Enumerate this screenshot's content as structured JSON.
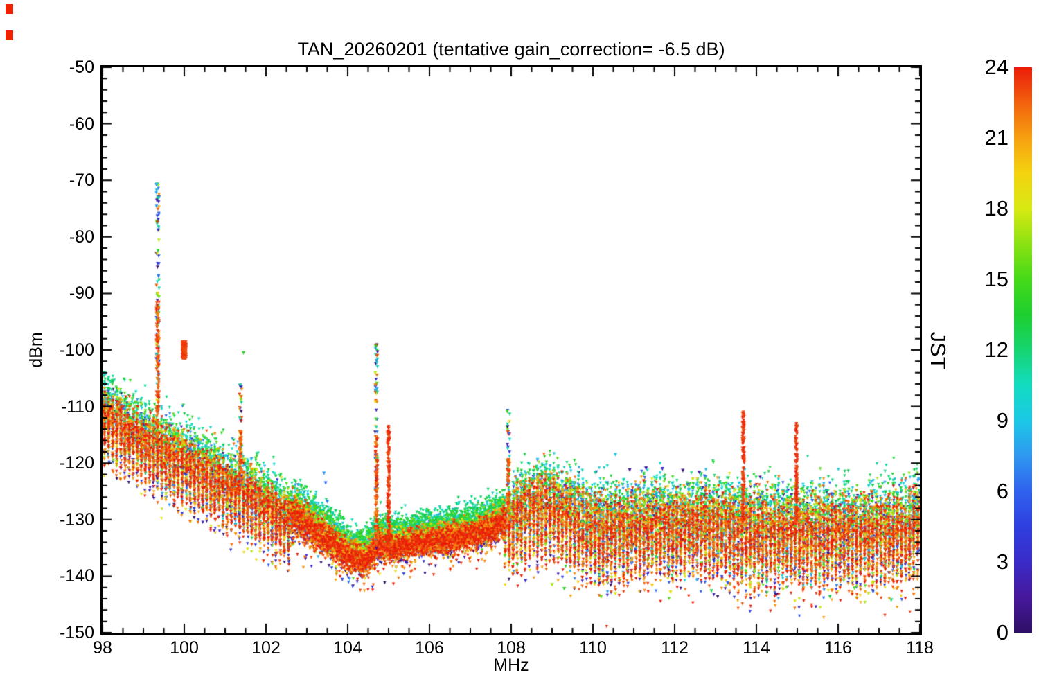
{
  "window": {
    "background": "#ffffff"
  },
  "artifacts": {
    "corner_marks_color": "#ee2200"
  },
  "chart_data": {
    "type": "scatter",
    "title": "TAN_20260201 (tentative gain_correction= -6.5 dB)",
    "xlabel": "MHz",
    "ylabel": "dBm",
    "colorbar_label": "JST",
    "marker": "triangle-down",
    "grid": false,
    "xlim": [
      98,
      118
    ],
    "ylim": [
      -150,
      -50
    ],
    "x_major_ticks": [
      98,
      100,
      102,
      104,
      106,
      108,
      110,
      112,
      114,
      116,
      118
    ],
    "x_minor_step": 0.5,
    "y_major_ticks": [
      -150,
      -140,
      -130,
      -120,
      -110,
      -100,
      -90,
      -80,
      -70,
      -60,
      -50
    ],
    "y_minor_step": 2,
    "colorbar": {
      "min": 0,
      "max": 24,
      "ticks": [
        0,
        3,
        6,
        9,
        12,
        15,
        18,
        21,
        24
      ],
      "stops": [
        [
          0,
          "#2e0f66"
        ],
        [
          1.5,
          "#47189c"
        ],
        [
          3,
          "#3a2bc8"
        ],
        [
          4.5,
          "#2f3fe0"
        ],
        [
          6,
          "#2f62ee"
        ],
        [
          7.5,
          "#2f97f0"
        ],
        [
          9,
          "#1cc8e6"
        ],
        [
          10.5,
          "#12dcc0"
        ],
        [
          12,
          "#16d470"
        ],
        [
          13.5,
          "#1ecf2f"
        ],
        [
          15,
          "#45da18"
        ],
        [
          16.5,
          "#8ce212"
        ],
        [
          18,
          "#d8e912"
        ],
        [
          19.5,
          "#f4d310"
        ],
        [
          21,
          "#f7a010"
        ],
        [
          22.5,
          "#f2600d"
        ],
        [
          24,
          "#ea1c0a"
        ]
      ]
    },
    "noise_band": {
      "description": "spectrum noise floor: [MHz, center dBm, half-spread dB]",
      "points": [
        [
          98,
          -110.5,
          4.5
        ],
        [
          98.5,
          -113,
          4.5
        ],
        [
          99,
          -115.5,
          4.5
        ],
        [
          99.5,
          -117.5,
          4.5
        ],
        [
          100,
          -119,
          4.5
        ],
        [
          100.5,
          -121,
          4.5
        ],
        [
          101,
          -123,
          4.5
        ],
        [
          101.5,
          -124.5,
          4.5
        ],
        [
          102,
          -127,
          4
        ],
        [
          102.5,
          -129,
          4
        ],
        [
          103,
          -131,
          3.5
        ],
        [
          103.5,
          -133.5,
          3
        ],
        [
          104,
          -136.5,
          3
        ],
        [
          104.4,
          -137.5,
          2.8
        ],
        [
          104.8,
          -134.5,
          2.8
        ],
        [
          105.2,
          -135,
          2.6
        ],
        [
          106,
          -134,
          2.6
        ],
        [
          107,
          -133,
          2.6
        ],
        [
          107.6,
          -131.5,
          2.8
        ],
        [
          107.95,
          -130,
          3
        ],
        [
          108.1,
          -128,
          4.5
        ],
        [
          108.8,
          -126,
          5.5
        ],
        [
          109.3,
          -127.5,
          5.5
        ],
        [
          110,
          -130.5,
          6
        ],
        [
          110.7,
          -130.5,
          5.5
        ],
        [
          111.3,
          -129.5,
          5.5
        ],
        [
          112,
          -130,
          5.5
        ],
        [
          112.7,
          -129.5,
          5.5
        ],
        [
          113.4,
          -130.5,
          6
        ],
        [
          114,
          -131,
          6
        ],
        [
          115,
          -131,
          6
        ],
        [
          116,
          -131,
          6
        ],
        [
          117,
          -131,
          6
        ],
        [
          117.6,
          -130.5,
          5.8
        ],
        [
          118,
          -129,
          5.5
        ]
      ]
    },
    "hour_offset": {
      "amplitude": 3.8,
      "center_hour": 11.5,
      "sigma2": 26
    },
    "comb": {
      "period": 0.1,
      "regions": [
        [
          98,
          102.6,
          3.5
        ],
        [
          102.6,
          107.85,
          0.8
        ],
        [
          107.85,
          118,
          4.5
        ]
      ]
    },
    "spikes": [
      {
        "x": 99.35,
        "top": -70.5,
        "width": 0.07,
        "style": "multi"
      },
      {
        "x": 101.38,
        "top": -106,
        "width": 0.06,
        "style": "multi"
      },
      {
        "x": 104.7,
        "top": -99,
        "width": 0.06,
        "style": "multi"
      },
      {
        "x": 105.0,
        "top": -113.5,
        "width": 0.06,
        "style": "red"
      },
      {
        "x": 107.93,
        "top": -110.5,
        "width": 0.07,
        "style": "multi"
      },
      {
        "x": 113.68,
        "top": -111,
        "width": 0.05,
        "style": "red"
      },
      {
        "x": 114.98,
        "top": -113,
        "width": 0.05,
        "style": "red"
      }
    ],
    "blobs": [
      {
        "x": 100.0,
        "y_top": -98.5,
        "y_bottom": -101.5,
        "width": 0.1,
        "hour": 23.6
      }
    ],
    "dots": [
      {
        "x": 99.33,
        "y": -70.7,
        "hour": 9
      },
      {
        "x": 99.33,
        "y": -73.5,
        "hour": 2
      },
      {
        "x": 99.36,
        "y": -78.8,
        "hour": 3.5
      },
      {
        "x": 101.45,
        "y": -100.5,
        "hour": 14
      },
      {
        "x": 103.42,
        "y": -121.8,
        "hour": 7.5
      },
      {
        "x": 103.46,
        "y": -123.5,
        "hour": 6
      },
      {
        "x": 103.5,
        "y": -126.8,
        "hour": 7
      },
      {
        "x": 103.58,
        "y": -128.2,
        "hour": 13
      },
      {
        "x": 110.55,
        "y": -118.5,
        "hour": 9
      },
      {
        "x": 98.08,
        "y": -104.2,
        "hour": 9
      },
      {
        "x": 98.14,
        "y": -105.3,
        "hour": 12
      },
      {
        "x": 110.9,
        "y": -121.2,
        "hour": 1
      },
      {
        "x": 111.3,
        "y": -120.9,
        "hour": 2.5
      },
      {
        "x": 112.2,
        "y": -121.3,
        "hour": 1
      },
      {
        "x": 111.7,
        "y": -121,
        "hour": 3
      },
      {
        "x": 112.6,
        "y": -121.6,
        "hour": 2
      },
      {
        "x": 108.35,
        "y": -140.8,
        "hour": 3
      },
      {
        "x": 109.3,
        "y": -142.2,
        "hour": 14
      },
      {
        "x": 110.2,
        "y": -143.6,
        "hour": 16
      },
      {
        "x": 110.55,
        "y": -143.1,
        "hour": 18
      },
      {
        "x": 111.45,
        "y": -141.6,
        "hour": 20
      },
      {
        "x": 112.9,
        "y": -142.6,
        "hour": 13
      },
      {
        "x": 113.3,
        "y": -141.2,
        "hour": 6
      },
      {
        "x": 114.5,
        "y": -143.2,
        "hour": 1
      },
      {
        "x": 115.8,
        "y": -143.6,
        "hour": 13
      },
      {
        "x": 116.4,
        "y": -142.1,
        "hour": 15
      },
      {
        "x": 117.3,
        "y": -144.2,
        "hour": 12
      },
      {
        "x": 117.85,
        "y": -143.2,
        "hour": 22
      },
      {
        "x": 109.0,
        "y": -141.5,
        "hour": 17
      },
      {
        "x": 111.9,
        "y": -142.8,
        "hour": 19
      }
    ]
  }
}
